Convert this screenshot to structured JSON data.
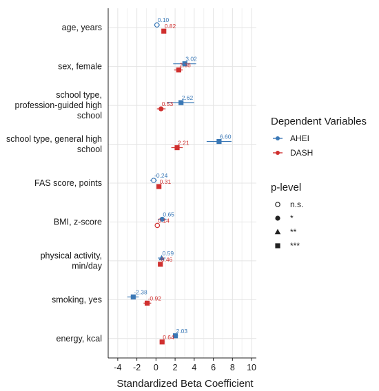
{
  "chart_data": {
    "type": "scatter",
    "subtype": "forest-plot",
    "xlabel": "Standardized Beta Coefficient",
    "xlim": [
      -5,
      10.5
    ],
    "xticks": [
      -4,
      -2,
      0,
      2,
      4,
      6,
      8,
      10
    ],
    "xtick_labels": [
      "-4",
      "-2",
      "0",
      "2",
      "4",
      "6",
      "8",
      "10"
    ],
    "grid": true,
    "categories": [
      [
        "age, years"
      ],
      [
        "sex, female"
      ],
      [
        "school type,",
        "profession-guided high",
        "school"
      ],
      [
        "school type, general high",
        "school"
      ],
      [
        "FAS score, points"
      ],
      [
        "BMI, z-score"
      ],
      [
        "physical activity,",
        "min/day"
      ],
      [
        "smoking, yes"
      ],
      [
        "energy, kcal"
      ]
    ],
    "series": [
      {
        "name": "AHEI",
        "color": "#3a78b6",
        "values": [
          0.1,
          3.02,
          2.62,
          6.6,
          -0.24,
          0.65,
          0.59,
          -2.38,
          2.03
        ],
        "value_labels": [
          "0.10",
          "3.02",
          "2.62",
          "6.60",
          "-0.24",
          "0.65",
          "0.59",
          "-2.38",
          "2.03"
        ],
        "ci_low": [
          -0.2,
          1.8,
          1.2,
          5.3,
          -0.6,
          0.2,
          0.2,
          -3.0,
          1.8
        ],
        "ci_high": [
          0.4,
          4.2,
          4.0,
          7.9,
          0.1,
          1.1,
          1.0,
          -1.8,
          2.3
        ],
        "significance": [
          "n.s.",
          "***",
          "***",
          "***",
          "n.s.",
          "*",
          "**",
          "***",
          "***"
        ]
      },
      {
        "name": "DASH",
        "color": "#d0302f",
        "values": [
          0.82,
          2.38,
          0.53,
          2.21,
          0.31,
          0.14,
          0.46,
          -0.92,
          0.64
        ],
        "value_labels": [
          "0.82",
          "2.38",
          "0.53",
          "2.21",
          "0.31",
          "0.14",
          "0.46",
          "-0.92",
          "0.64"
        ],
        "ci_low": [
          0.6,
          1.9,
          0.1,
          1.6,
          0.1,
          -0.1,
          0.2,
          -1.3,
          0.4
        ],
        "ci_high": [
          1.0,
          2.8,
          1.0,
          2.8,
          0.5,
          0.4,
          0.7,
          -0.5,
          0.9
        ],
        "significance": [
          "***",
          "***",
          "*",
          "***",
          "***",
          "n.s.",
          "***",
          "***",
          "***"
        ]
      }
    ],
    "legend": {
      "placement": "right",
      "series_title": "Dependent Variables",
      "series_entries": [
        "AHEI",
        "DASH"
      ],
      "shape_title": "p-level",
      "shape_entries": [
        {
          "label": "n.s.",
          "shape": "open-circle"
        },
        {
          "label": "*",
          "shape": "circle"
        },
        {
          "label": "**",
          "shape": "triangle"
        },
        {
          "label": "***",
          "shape": "square"
        }
      ]
    }
  }
}
